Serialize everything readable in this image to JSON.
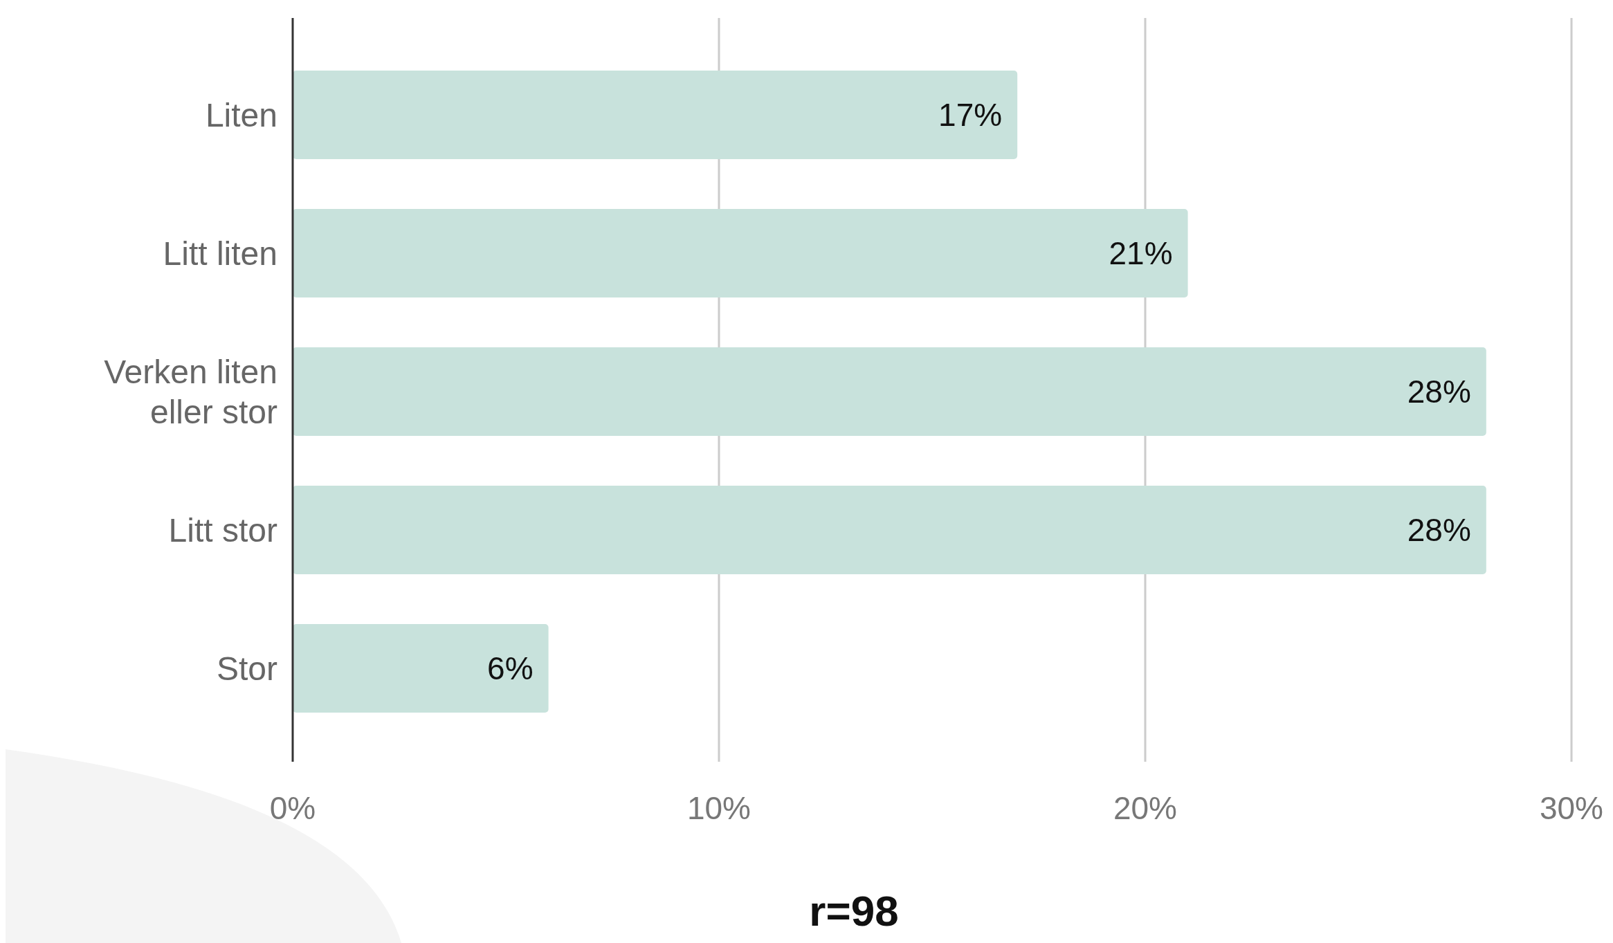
{
  "chart_data": {
    "type": "bar",
    "orientation": "horizontal",
    "categories": [
      "Liten",
      "Litt liten",
      "Verken liten eller stor",
      "Litt stor",
      "Stor"
    ],
    "values": [
      17,
      21,
      28,
      28,
      6
    ],
    "value_labels": [
      "17%",
      "21%",
      "28%",
      "28%",
      "6%"
    ],
    "color": "#c8e2dc",
    "xlim": [
      0,
      30
    ],
    "xticks": [
      {
        "value": 0,
        "label": "0%"
      },
      {
        "value": 10,
        "label": "10%"
      },
      {
        "value": 20,
        "label": "20%"
      },
      {
        "value": 30,
        "label": "30%"
      }
    ],
    "grid": "x",
    "annotations": [
      "r=98"
    ]
  }
}
